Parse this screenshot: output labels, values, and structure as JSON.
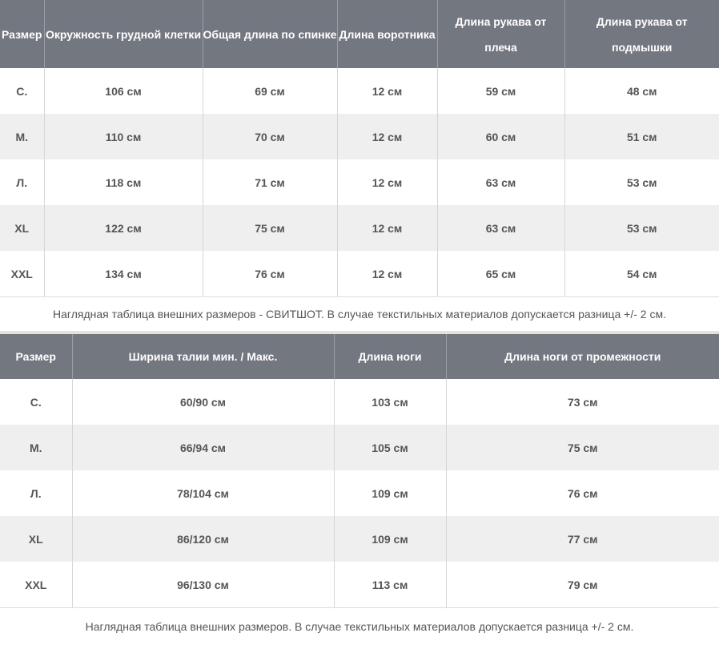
{
  "table1": {
    "headers": [
      "Размер",
      "Окружность грудной клетки",
      "Общая длина по спинке",
      "Длина воротника",
      "Длина рукава от плеча",
      "Длина рукава от подмышки"
    ],
    "rows": [
      [
        "С.",
        "106 см",
        "69 см",
        "12 см",
        "59 см",
        "48 см"
      ],
      [
        "М.",
        "110 см",
        "70 см",
        "12 см",
        "60 см",
        "51 см"
      ],
      [
        "Л.",
        "118 см",
        "71 см",
        "12 см",
        "63 см",
        "53 см"
      ],
      [
        "XL",
        "122 см",
        "75 см",
        "12 см",
        "63 см",
        "53 см"
      ],
      [
        "XXL",
        "134 см",
        "76 см",
        "12 см",
        "65 см",
        "54 см"
      ]
    ],
    "caption": "Наглядная таблица внешних размеров - СВИТШОТ. В случае текстильных материалов допускается разница +/- 2 см."
  },
  "table2": {
    "headers": [
      "Размер",
      "Ширина талии мин. / Макс.",
      "Длина ноги",
      "Длина ноги от промежности"
    ],
    "rows": [
      [
        "С.",
        "60/90 см",
        "103 см",
        "73 см"
      ],
      [
        "М.",
        "66/94 см",
        "105 см",
        "75 см"
      ],
      [
        "Л.",
        "78/104 см",
        "109 см",
        "76 см"
      ],
      [
        "XL",
        "86/120 см",
        "109 см",
        "77 см"
      ],
      [
        "XXL",
        "96/130 см",
        "113 см",
        "79 см"
      ]
    ],
    "caption": "Наглядная таблица внешних размеров. В случае текстильных материалов допускается разница +/- 2 см."
  },
  "colors": {
    "header_bg": "#73777f",
    "stripe": "#efefef",
    "text": "#555555"
  }
}
